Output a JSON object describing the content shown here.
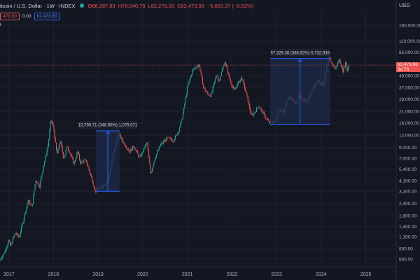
{
  "header": {
    "symbol": "itcoin / U.S. Dollar · 1W · INDEX",
    "open": "O68,287.83",
    "high": "H70,040.75",
    "low": "L62,276.20",
    "close": "C62,473.96",
    "change": "−5,820.37 (−8.52%)",
    "pill_left": "473.60",
    "zero_value": "0.00",
    "pill_right": "62,473.60",
    "row3_char": "i",
    "status_dot_color": "#26a69a"
  },
  "price_axis": {
    "unit": "USD",
    "current_price": "62,473.96",
    "current_subtext": "3d 7h"
  },
  "colors": {
    "background": "#131722",
    "up": "#26a69a",
    "down": "#ef5350",
    "measure_fill": "#1e2a4a",
    "measure_stroke": "#2962ff"
  },
  "chart_data": {
    "type": "candlestick",
    "scale": "log",
    "ylim": [
      550,
      230000
    ],
    "xlim": [
      "2016-10-20",
      "2025-09-01"
    ],
    "y_ticks": [
      {
        "v": 160000,
        "label": "160,000.00"
      },
      {
        "v": 110000,
        "label": "110,000.00"
      },
      {
        "v": 85000,
        "label": "85,000.00"
      },
      {
        "v": 49000,
        "label": "49,000.00"
      },
      {
        "v": 37000,
        "label": "37,000.00"
      },
      {
        "v": 28000,
        "label": "28,000.00"
      },
      {
        "v": 21000,
        "label": "21,000.00"
      },
      {
        "v": 16000,
        "label": "16,000.00"
      },
      {
        "v": 12000,
        "label": "12,000.00"
      },
      {
        "v": 9000,
        "label": "9,000.00"
      },
      {
        "v": 7000,
        "label": "7,000.00"
      },
      {
        "v": 5400,
        "label": "5,400.00"
      },
      {
        "v": 4100,
        "label": "4,100.00"
      },
      {
        "v": 3200,
        "label": "3,200.00"
      },
      {
        "v": 2400,
        "label": "2,400.00"
      },
      {
        "v": 1800,
        "label": "1,800.00"
      },
      {
        "v": 1400,
        "label": "1,400.00"
      },
      {
        "v": 1100,
        "label": "1,100.00"
      },
      {
        "v": 830,
        "label": "830.00"
      },
      {
        "v": 650,
        "label": "650.00"
      }
    ],
    "x_ticks": [
      {
        "date": "2017-01-01",
        "label": "2017"
      },
      {
        "date": "2018-01-01",
        "label": "2018"
      },
      {
        "date": "2019-01-01",
        "label": "2019"
      },
      {
        "date": "2020-01-01",
        "label": "2020"
      },
      {
        "date": "2021-01-01",
        "label": "2021"
      },
      {
        "date": "2022-01-01",
        "label": "2022"
      },
      {
        "date": "2023-01-01",
        "label": "2023"
      },
      {
        "date": "2024-01-01",
        "label": "2024"
      },
      {
        "date": "2025-01-01",
        "label": "2025"
      }
    ],
    "price_path": [
      [
        "2016-10-20",
        620
      ],
      [
        "2016-12-01",
        750
      ],
      [
        "2017-01-05",
        1000
      ],
      [
        "2017-01-20",
        880
      ],
      [
        "2017-03-01",
        1200
      ],
      [
        "2017-04-01",
        1080
      ],
      [
        "2017-05-15",
        1800
      ],
      [
        "2017-06-15",
        2600
      ],
      [
        "2017-07-15",
        2200
      ],
      [
        "2017-08-15",
        4200
      ],
      [
        "2017-09-15",
        3600
      ],
      [
        "2017-10-20",
        6000
      ],
      [
        "2017-11-25",
        9500
      ],
      [
        "2017-12-17",
        17500
      ],
      [
        "2018-01-10",
        14000
      ],
      [
        "2018-02-05",
        7500
      ],
      [
        "2018-03-05",
        10500
      ],
      [
        "2018-04-01",
        6900
      ],
      [
        "2018-05-01",
        9300
      ],
      [
        "2018-06-25",
        6100
      ],
      [
        "2018-07-25",
        8200
      ],
      [
        "2018-08-15",
        6300
      ],
      [
        "2018-10-01",
        6600
      ],
      [
        "2018-11-20",
        4200
      ],
      [
        "2018-12-15",
        3200
      ],
      [
        "2019-02-01",
        3450
      ],
      [
        "2019-04-01",
        4200
      ],
      [
        "2019-05-15",
        7900
      ],
      [
        "2019-06-26",
        12300
      ],
      [
        "2019-08-01",
        10200
      ],
      [
        "2019-09-25",
        8100
      ],
      [
        "2019-10-26",
        9300
      ],
      [
        "2019-12-15",
        7000
      ],
      [
        "2020-02-12",
        10200
      ],
      [
        "2020-03-13",
        4800
      ],
      [
        "2020-04-15",
        6900
      ],
      [
        "2020-06-01",
        9500
      ],
      [
        "2020-07-28",
        11200
      ],
      [
        "2020-09-15",
        10600
      ],
      [
        "2020-10-25",
        13000
      ],
      [
        "2020-12-01",
        19000
      ],
      [
        "2021-01-08",
        37000
      ],
      [
        "2021-02-21",
        56000
      ],
      [
        "2021-03-14",
        59000
      ],
      [
        "2021-04-14",
        63000
      ],
      [
        "2021-05-20",
        37000
      ],
      [
        "2021-06-22",
        31500
      ],
      [
        "2021-07-20",
        30500
      ],
      [
        "2021-09-06",
        51000
      ],
      [
        "2021-09-20",
        42000
      ],
      [
        "2021-11-10",
        68000
      ],
      [
        "2021-12-15",
        47000
      ],
      [
        "2022-01-24",
        34000
      ],
      [
        "2022-03-28",
        47000
      ],
      [
        "2022-05-10",
        30000
      ],
      [
        "2022-06-18",
        18500
      ],
      [
        "2022-08-15",
        24000
      ],
      [
        "2022-10-01",
        19000
      ],
      [
        "2022-11-10",
        16000
      ],
      [
        "2022-12-31",
        16500
      ],
      [
        "2023-01-25",
        23000
      ],
      [
        "2023-03-10",
        20000
      ],
      [
        "2023-04-14",
        30500
      ],
      [
        "2023-06-15",
        25000
      ],
      [
        "2023-07-15",
        30500
      ],
      [
        "2023-09-11",
        25500
      ],
      [
        "2023-10-25",
        34500
      ],
      [
        "2023-12-08",
        44000
      ],
      [
        "2024-01-23",
        39000
      ],
      [
        "2024-02-28",
        62000
      ],
      [
        "2024-03-14",
        73000
      ],
      [
        "2024-05-01",
        57000
      ],
      [
        "2024-06-05",
        71000
      ],
      [
        "2024-07-05",
        54000
      ],
      [
        "2024-07-29",
        69000
      ],
      [
        "2024-08-05",
        53000
      ],
      [
        "2024-08-20",
        62473
      ]
    ],
    "measurements": [
      {
        "x0": "2018-12-15",
        "x1": "2019-06-26",
        "y0": 3200,
        "y1": 13300,
        "label": "10,790.71 (346.90%) 1,079,071"
      },
      {
        "x0": "2022-11-10",
        "x1": "2024-03-14",
        "y0": 15500,
        "y1": 73000,
        "label": "57,329.38 (366.92%) 5,732,938"
      }
    ],
    "current_price_value": 62473.96
  }
}
